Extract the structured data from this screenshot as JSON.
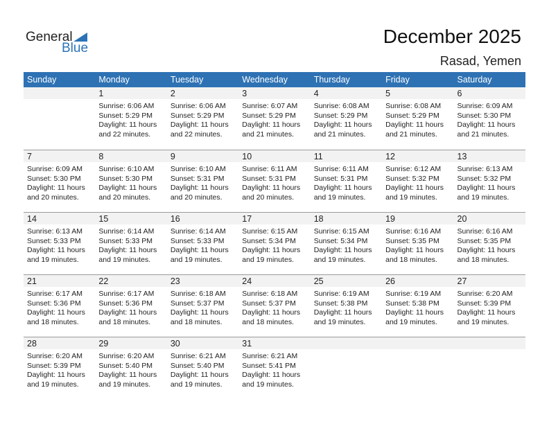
{
  "logo": {
    "general": "General",
    "blue": "Blue"
  },
  "title": "December 2025",
  "location": "Rasad, Yemen",
  "days": [
    "Sunday",
    "Monday",
    "Tuesday",
    "Wednesday",
    "Thursday",
    "Friday",
    "Saturday"
  ],
  "weeks": [
    [
      null,
      {
        "d": "1",
        "sr": "Sunrise: 6:06 AM",
        "ss": "Sunset: 5:29 PM",
        "dl": "Daylight: 11 hours",
        "dm": "and 22 minutes."
      },
      {
        "d": "2",
        "sr": "Sunrise: 6:06 AM",
        "ss": "Sunset: 5:29 PM",
        "dl": "Daylight: 11 hours",
        "dm": "and 22 minutes."
      },
      {
        "d": "3",
        "sr": "Sunrise: 6:07 AM",
        "ss": "Sunset: 5:29 PM",
        "dl": "Daylight: 11 hours",
        "dm": "and 21 minutes."
      },
      {
        "d": "4",
        "sr": "Sunrise: 6:08 AM",
        "ss": "Sunset: 5:29 PM",
        "dl": "Daylight: 11 hours",
        "dm": "and 21 minutes."
      },
      {
        "d": "5",
        "sr": "Sunrise: 6:08 AM",
        "ss": "Sunset: 5:29 PM",
        "dl": "Daylight: 11 hours",
        "dm": "and 21 minutes."
      },
      {
        "d": "6",
        "sr": "Sunrise: 6:09 AM",
        "ss": "Sunset: 5:30 PM",
        "dl": "Daylight: 11 hours",
        "dm": "and 21 minutes."
      }
    ],
    [
      {
        "d": "7",
        "sr": "Sunrise: 6:09 AM",
        "ss": "Sunset: 5:30 PM",
        "dl": "Daylight: 11 hours",
        "dm": "and 20 minutes."
      },
      {
        "d": "8",
        "sr": "Sunrise: 6:10 AM",
        "ss": "Sunset: 5:30 PM",
        "dl": "Daylight: 11 hours",
        "dm": "and 20 minutes."
      },
      {
        "d": "9",
        "sr": "Sunrise: 6:10 AM",
        "ss": "Sunset: 5:31 PM",
        "dl": "Daylight: 11 hours",
        "dm": "and 20 minutes."
      },
      {
        "d": "10",
        "sr": "Sunrise: 6:11 AM",
        "ss": "Sunset: 5:31 PM",
        "dl": "Daylight: 11 hours",
        "dm": "and 20 minutes."
      },
      {
        "d": "11",
        "sr": "Sunrise: 6:11 AM",
        "ss": "Sunset: 5:31 PM",
        "dl": "Daylight: 11 hours",
        "dm": "and 19 minutes."
      },
      {
        "d": "12",
        "sr": "Sunrise: 6:12 AM",
        "ss": "Sunset: 5:32 PM",
        "dl": "Daylight: 11 hours",
        "dm": "and 19 minutes."
      },
      {
        "d": "13",
        "sr": "Sunrise: 6:13 AM",
        "ss": "Sunset: 5:32 PM",
        "dl": "Daylight: 11 hours",
        "dm": "and 19 minutes."
      }
    ],
    [
      {
        "d": "14",
        "sr": "Sunrise: 6:13 AM",
        "ss": "Sunset: 5:33 PM",
        "dl": "Daylight: 11 hours",
        "dm": "and 19 minutes."
      },
      {
        "d": "15",
        "sr": "Sunrise: 6:14 AM",
        "ss": "Sunset: 5:33 PM",
        "dl": "Daylight: 11 hours",
        "dm": "and 19 minutes."
      },
      {
        "d": "16",
        "sr": "Sunrise: 6:14 AM",
        "ss": "Sunset: 5:33 PM",
        "dl": "Daylight: 11 hours",
        "dm": "and 19 minutes."
      },
      {
        "d": "17",
        "sr": "Sunrise: 6:15 AM",
        "ss": "Sunset: 5:34 PM",
        "dl": "Daylight: 11 hours",
        "dm": "and 19 minutes."
      },
      {
        "d": "18",
        "sr": "Sunrise: 6:15 AM",
        "ss": "Sunset: 5:34 PM",
        "dl": "Daylight: 11 hours",
        "dm": "and 19 minutes."
      },
      {
        "d": "19",
        "sr": "Sunrise: 6:16 AM",
        "ss": "Sunset: 5:35 PM",
        "dl": "Daylight: 11 hours",
        "dm": "and 18 minutes."
      },
      {
        "d": "20",
        "sr": "Sunrise: 6:16 AM",
        "ss": "Sunset: 5:35 PM",
        "dl": "Daylight: 11 hours",
        "dm": "and 18 minutes."
      }
    ],
    [
      {
        "d": "21",
        "sr": "Sunrise: 6:17 AM",
        "ss": "Sunset: 5:36 PM",
        "dl": "Daylight: 11 hours",
        "dm": "and 18 minutes."
      },
      {
        "d": "22",
        "sr": "Sunrise: 6:17 AM",
        "ss": "Sunset: 5:36 PM",
        "dl": "Daylight: 11 hours",
        "dm": "and 18 minutes."
      },
      {
        "d": "23",
        "sr": "Sunrise: 6:18 AM",
        "ss": "Sunset: 5:37 PM",
        "dl": "Daylight: 11 hours",
        "dm": "and 18 minutes."
      },
      {
        "d": "24",
        "sr": "Sunrise: 6:18 AM",
        "ss": "Sunset: 5:37 PM",
        "dl": "Daylight: 11 hours",
        "dm": "and 18 minutes."
      },
      {
        "d": "25",
        "sr": "Sunrise: 6:19 AM",
        "ss": "Sunset: 5:38 PM",
        "dl": "Daylight: 11 hours",
        "dm": "and 19 minutes."
      },
      {
        "d": "26",
        "sr": "Sunrise: 6:19 AM",
        "ss": "Sunset: 5:38 PM",
        "dl": "Daylight: 11 hours",
        "dm": "and 19 minutes."
      },
      {
        "d": "27",
        "sr": "Sunrise: 6:20 AM",
        "ss": "Sunset: 5:39 PM",
        "dl": "Daylight: 11 hours",
        "dm": "and 19 minutes."
      }
    ],
    [
      {
        "d": "28",
        "sr": "Sunrise: 6:20 AM",
        "ss": "Sunset: 5:39 PM",
        "dl": "Daylight: 11 hours",
        "dm": "and 19 minutes."
      },
      {
        "d": "29",
        "sr": "Sunrise: 6:20 AM",
        "ss": "Sunset: 5:40 PM",
        "dl": "Daylight: 11 hours",
        "dm": "and 19 minutes."
      },
      {
        "d": "30",
        "sr": "Sunrise: 6:21 AM",
        "ss": "Sunset: 5:40 PM",
        "dl": "Daylight: 11 hours",
        "dm": "and 19 minutes."
      },
      {
        "d": "31",
        "sr": "Sunrise: 6:21 AM",
        "ss": "Sunset: 5:41 PM",
        "dl": "Daylight: 11 hours",
        "dm": "and 19 minutes."
      },
      null,
      null,
      null
    ]
  ]
}
